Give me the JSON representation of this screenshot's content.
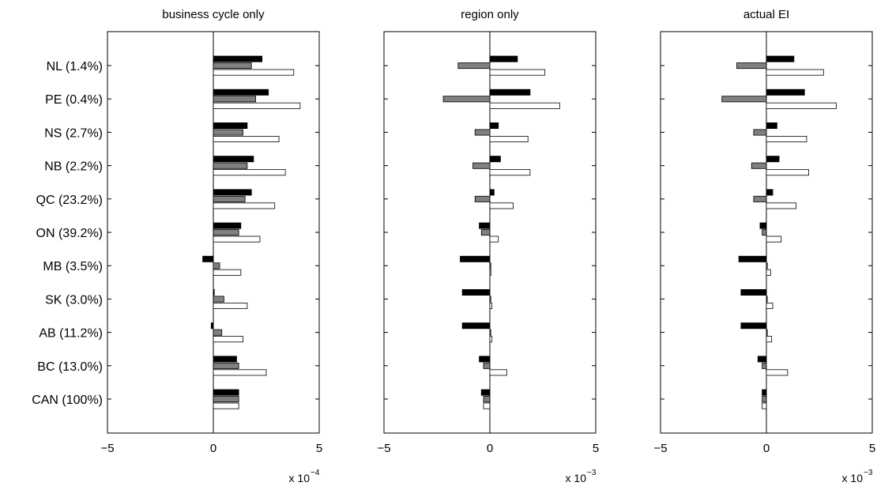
{
  "chart_data": {
    "type": "bar",
    "orientation": "horizontal",
    "categories": [
      "NL (1.4%)",
      "PE (0.4%)",
      "NS (2.7%)",
      "NB (2.2%)",
      "QC (23.2%)",
      "ON (39.2%)",
      "MB (3.5%)",
      "SK (3.0%)",
      "AB (11.2%)",
      "BC (13.0%)",
      "CAN (100%)"
    ],
    "colors": [
      "#000000",
      "#808080",
      "#ffffff"
    ],
    "panels": [
      {
        "title": "business cycle only",
        "xlim": [
          -5,
          5
        ],
        "xticks": [
          "−5",
          "0",
          "5"
        ],
        "multiplier": "x 10",
        "exponent": "−4",
        "series": [
          {
            "values": [
              2.3,
              2.6,
              1.6,
              1.9,
              1.8,
              1.3,
              -0.5,
              0.0,
              -0.1,
              1.1,
              1.2
            ]
          },
          {
            "values": [
              1.8,
              2.0,
              1.4,
              1.6,
              1.5,
              1.2,
              0.3,
              0.5,
              0.4,
              1.2,
              1.2
            ]
          },
          {
            "values": [
              3.8,
              4.1,
              3.1,
              3.4,
              2.9,
              2.2,
              1.3,
              1.6,
              1.4,
              2.5,
              1.2
            ]
          }
        ]
      },
      {
        "title": "region only",
        "xlim": [
          -5,
          5
        ],
        "xticks": [
          "−5",
          "0",
          "5"
        ],
        "multiplier": "x 10",
        "exponent": "−3",
        "series": [
          {
            "values": [
              1.3,
              1.9,
              0.4,
              0.5,
              0.2,
              -0.5,
              -1.4,
              -1.3,
              -1.3,
              -0.5,
              -0.4
            ]
          },
          {
            "values": [
              -1.5,
              -2.2,
              -0.7,
              -0.8,
              -0.7,
              -0.4,
              0.0,
              0.0,
              0.0,
              -0.3,
              -0.3
            ]
          },
          {
            "values": [
              2.6,
              3.3,
              1.8,
              1.9,
              1.1,
              0.4,
              0.05,
              0.1,
              0.1,
              0.8,
              -0.3
            ]
          }
        ]
      },
      {
        "title": "actual EI",
        "xlim": [
          -5,
          5
        ],
        "xticks": [
          "−5",
          "0",
          "5"
        ],
        "multiplier": "x 10",
        "exponent": "−3",
        "series": [
          {
            "values": [
              1.3,
              1.8,
              0.5,
              0.6,
              0.3,
              -0.3,
              -1.3,
              -1.2,
              -1.2,
              -0.4,
              -0.2
            ]
          },
          {
            "values": [
              -1.4,
              -2.1,
              -0.6,
              -0.7,
              -0.6,
              -0.2,
              0.0,
              0.0,
              0.0,
              -0.2,
              -0.2
            ]
          },
          {
            "values": [
              2.7,
              3.3,
              1.9,
              2.0,
              1.4,
              0.7,
              0.2,
              0.3,
              0.25,
              1.0,
              -0.2
            ]
          }
        ]
      }
    ],
    "grid": false,
    "legend": "none"
  }
}
